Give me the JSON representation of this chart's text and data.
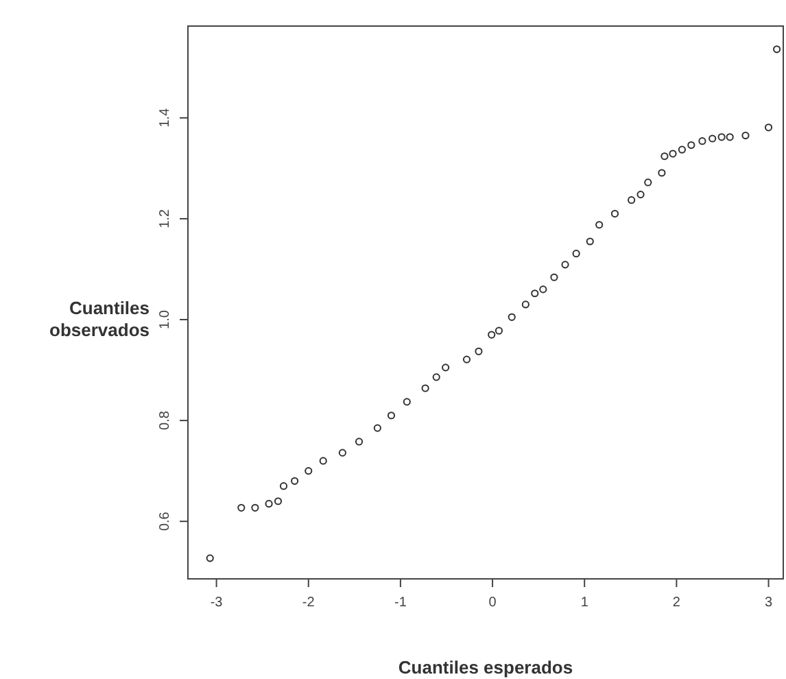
{
  "chart_data": {
    "type": "scatter",
    "xlabel": "Cuantiles esperados",
    "ylabel": "Cuantiles observados",
    "xlim": [
      -3.31,
      3.16
    ],
    "ylim": [
      0.486,
      1.582
    ],
    "xticks": [
      -3,
      -2,
      -1,
      0,
      1,
      2,
      3
    ],
    "yticks": [
      {
        "value": 0.6,
        "label": "0.6"
      },
      {
        "value": 0.8,
        "label": "0.8"
      },
      {
        "value": 1,
        "label": "1.0"
      },
      {
        "value": 1.2,
        "label": "1.2"
      },
      {
        "value": 1.4,
        "label": "1.4"
      }
    ],
    "marker": "circle",
    "grid": false,
    "legend": false,
    "series": [
      {
        "color": "#333333",
        "x": [
          -3.07,
          -2.73,
          -2.58,
          -2.43,
          -2.33,
          -2.27,
          -2.15,
          -2.0,
          -1.84,
          -1.63,
          -1.45,
          -1.25,
          -1.1,
          -0.93,
          -0.73,
          -0.61,
          -0.51,
          -0.28,
          -0.15,
          -0.01,
          0.07,
          0.21,
          0.36,
          0.46,
          0.55,
          0.67,
          0.79,
          0.91,
          1.06,
          1.16,
          1.33,
          1.51,
          1.61,
          1.69,
          1.84,
          1.87,
          1.96,
          2.06,
          2.16,
          2.28,
          2.39,
          2.49,
          2.58,
          2.75,
          3.0,
          3.09
        ],
        "values": [
          0.527,
          0.627,
          0.627,
          0.635,
          0.64,
          0.67,
          0.68,
          0.7,
          0.72,
          0.736,
          0.758,
          0.785,
          0.81,
          0.837,
          0.864,
          0.886,
          0.905,
          0.921,
          0.937,
          0.97,
          0.978,
          1.005,
          1.03,
          1.052,
          1.06,
          1.084,
          1.109,
          1.131,
          1.155,
          1.188,
          1.21,
          1.237,
          1.248,
          1.272,
          1.291,
          1.324,
          1.329,
          1.337,
          1.346,
          1.354,
          1.359,
          1.362,
          1.362,
          1.365,
          1.381,
          1.536
        ]
      }
    ]
  }
}
